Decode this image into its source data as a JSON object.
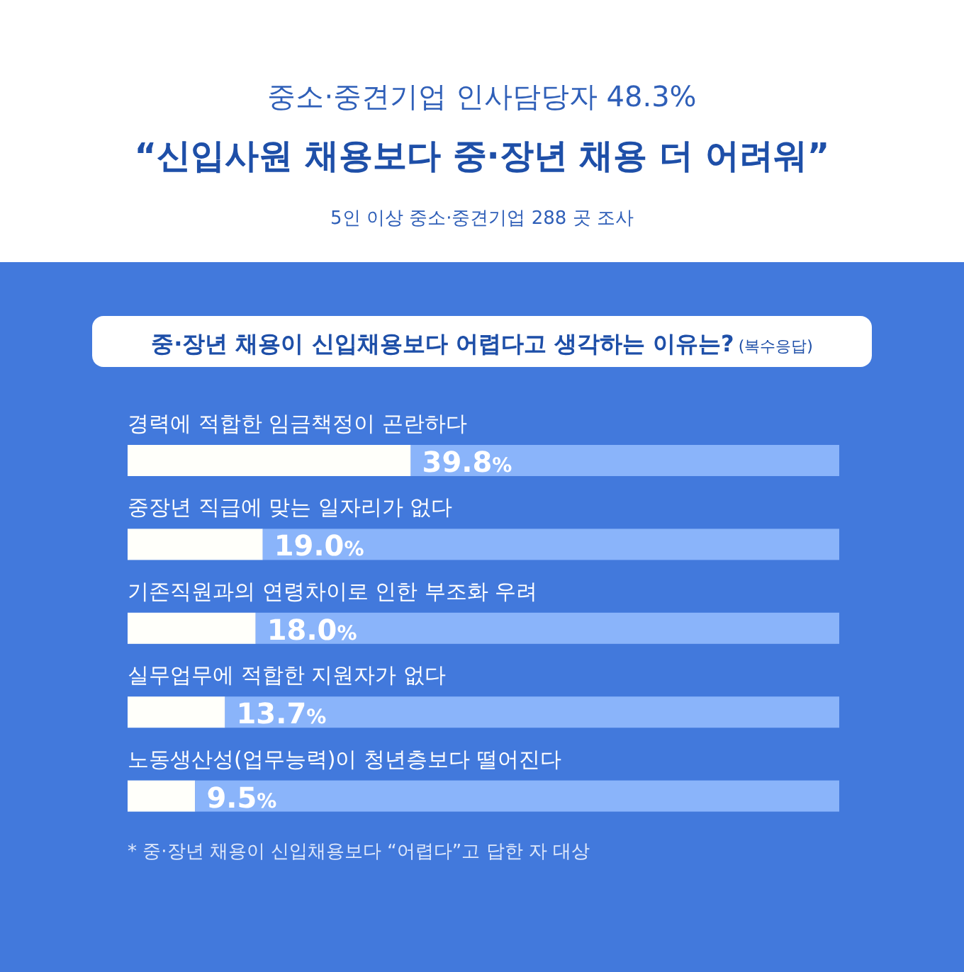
{
  "chart_data": {
    "type": "bar",
    "orientation": "horizontal",
    "stacked": true,
    "title": "“신입사원 채용보다 중·장년 채용 더 어려워”",
    "subtitle": "5인 이상 중소·중견기업 288 곳 조사",
    "annotations": [
      "중소·중견기업 인사담당자 48.3%",
      "중·장년 채용이 신입채용보다 어렵다고 생각하는 이유는?",
      "(복수응답)",
      "* 중·장년 채용이 신입채용보다 “어렵다”고 답한 자 대상"
    ],
    "categories": [
      "경력에 적합한 임금책정이 곤란하다",
      "중장년 직급에 맞는 일자리가 없다",
      "기존직원과의 연령차이로 인한 부조화 우려",
      "실무업무에 적합한 지원자가 없다",
      "노동생산성(업무능력)이 청년층보다 떨어진다"
    ],
    "series": [
      {
        "color": "#fffffa",
        "values": [
          39.8,
          19.0,
          18.0,
          13.7,
          9.5
        ],
        "value_labels": [
          "39.8%",
          "19.0%",
          "18.0%",
          "13.7%",
          "9.5%"
        ]
      },
      {
        "color": "#8ab4fa",
        "values": [
          60.2,
          81.0,
          82.0,
          86.3,
          90.5
        ]
      }
    ],
    "xlim": [
      0,
      100
    ]
  }
}
